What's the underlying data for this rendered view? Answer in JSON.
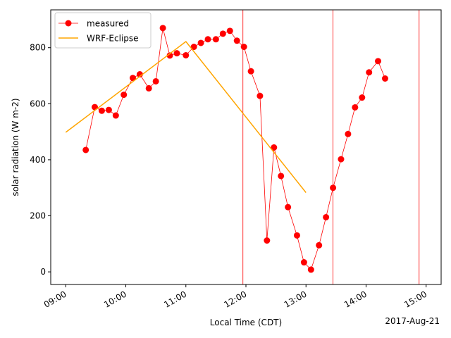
{
  "chart_data": {
    "type": "line",
    "xlabel": "Local Time (CDT)",
    "ylabel": "solar radiation (W m-2)",
    "date_label": "2017-Aug-21",
    "xlim": [
      "08:45",
      "15:15"
    ],
    "ylim": [
      -45,
      935
    ],
    "x_ticks": [
      "09:00",
      "10:00",
      "11:00",
      "12:00",
      "13:00",
      "14:00",
      "15:00"
    ],
    "y_ticks": [
      0,
      200,
      400,
      600,
      800
    ],
    "grid": false,
    "legend_position": "top-left",
    "series": [
      {
        "name": "measured",
        "type": "line-with-markers",
        "color": "#ff0000",
        "points": [
          [
            "09:20",
            435
          ],
          [
            "09:29",
            588
          ],
          [
            "09:36",
            575
          ],
          [
            "09:43",
            578
          ],
          [
            "09:50",
            558
          ],
          [
            "09:58",
            632
          ],
          [
            "10:07",
            692
          ],
          [
            "10:14",
            705
          ],
          [
            "10:23",
            655
          ],
          [
            "10:30",
            680
          ],
          [
            "10:37",
            870
          ],
          [
            "10:44",
            772
          ],
          [
            "10:51",
            780
          ],
          [
            "11:00",
            773
          ],
          [
            "11:08",
            803
          ],
          [
            "11:15",
            817
          ],
          [
            "11:22",
            830
          ],
          [
            "11:30",
            830
          ],
          [
            "11:37",
            850
          ],
          [
            "11:44",
            860
          ],
          [
            "11:51",
            825
          ],
          [
            "11:58",
            803
          ],
          [
            "12:05",
            716
          ],
          [
            "12:14",
            628
          ],
          [
            "12:21",
            112
          ],
          [
            "12:28",
            444
          ],
          [
            "12:35",
            342
          ],
          [
            "12:42",
            231
          ],
          [
            "12:51",
            130
          ],
          [
            "12:58",
            34
          ],
          [
            "13:05",
            8
          ],
          [
            "13:13",
            95
          ],
          [
            "13:20",
            195
          ],
          [
            "13:27",
            300
          ],
          [
            "13:35",
            402
          ],
          [
            "13:42",
            492
          ],
          [
            "13:49",
            587
          ],
          [
            "13:56",
            622
          ],
          [
            "14:03",
            712
          ],
          [
            "14:12",
            752
          ],
          [
            "14:19",
            690
          ]
        ],
        "markers": [
          [
            "09:20",
            435
          ],
          [
            "09:29",
            588
          ],
          [
            "09:36",
            575
          ],
          [
            "09:43",
            578
          ],
          [
            "09:50",
            558
          ],
          [
            "09:58",
            632
          ],
          [
            "10:07",
            692
          ],
          [
            "10:14",
            705
          ],
          [
            "10:23",
            655
          ],
          [
            "10:30",
            680
          ],
          [
            "10:37",
            870
          ],
          [
            "10:44",
            772
          ],
          [
            "10:51",
            780
          ],
          [
            "11:00",
            773
          ],
          [
            "11:08",
            803
          ],
          [
            "11:15",
            817
          ],
          [
            "11:22",
            830
          ],
          [
            "11:30",
            830
          ],
          [
            "11:37",
            850
          ],
          [
            "11:44",
            860
          ],
          [
            "11:51",
            825
          ],
          [
            "11:58",
            803
          ],
          [
            "12:05",
            716
          ],
          [
            "12:14",
            628
          ],
          [
            "12:21",
            112
          ],
          [
            "12:28",
            444
          ],
          [
            "12:35",
            342
          ],
          [
            "12:42",
            231
          ],
          [
            "12:51",
            130
          ],
          [
            "12:58",
            34
          ],
          [
            "13:05",
            8
          ],
          [
            "13:13",
            95
          ],
          [
            "13:20",
            195
          ],
          [
            "13:27",
            300
          ],
          [
            "13:35",
            402
          ],
          [
            "13:42",
            492
          ],
          [
            "13:49",
            587
          ],
          [
            "13:56",
            622
          ],
          [
            "14:03",
            712
          ],
          [
            "14:12",
            752
          ],
          [
            "14:19",
            690
          ]
        ]
      },
      {
        "name": "WRF-Eclipse",
        "type": "line",
        "color": "#ffa500",
        "points": [
          [
            "09:00",
            498
          ],
          [
            "11:00",
            822
          ],
          [
            "13:00",
            283
          ]
        ]
      }
    ],
    "vertical_lines": [
      {
        "x": "11:57",
        "color": "#ff0000"
      },
      {
        "x": "13:27",
        "color": "#ff0000"
      },
      {
        "x": "14:53",
        "color": "#ff0000"
      }
    ]
  }
}
